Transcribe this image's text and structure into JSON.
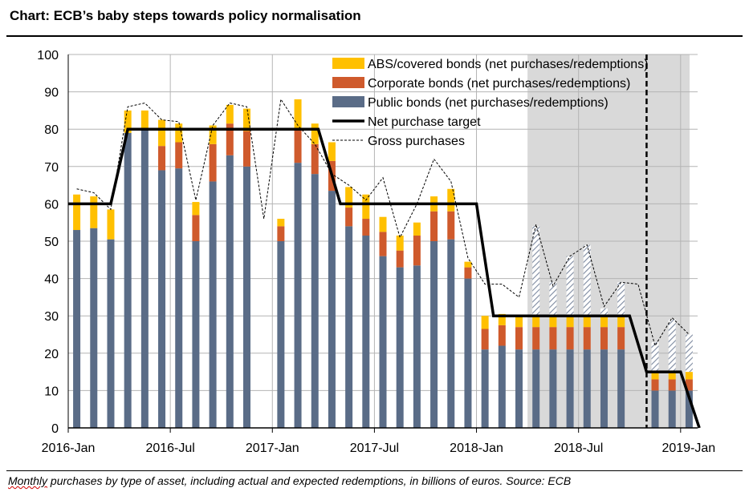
{
  "header": {
    "title": "Chart: ECB’s baby steps towards policy normalisation"
  },
  "caption": {
    "squiggle_word": "Monthly",
    "rest": " purchases by type of asset, including actual and expected redemptions, in billions of euros. Source: ECB"
  },
  "colors": {
    "public": "#5a6c87",
    "corporate": "#cf5a2c",
    "abs": "#ffc000",
    "shade": "#d9d9d9",
    "grid": "#b4b4b4",
    "target": "#000000"
  },
  "chart_data": {
    "type": "bar",
    "stacked": true,
    "title": "Chart: ECB’s baby steps towards policy normalisation",
    "xlabel": "",
    "ylabel": "",
    "ylim": [
      0,
      100
    ],
    "yticks": [
      0,
      10,
      20,
      30,
      40,
      50,
      60,
      70,
      80,
      90,
      100
    ],
    "xtick_labels": [
      {
        "index": 0,
        "label": "2016-Jan"
      },
      {
        "index": 6,
        "label": "2016-Jul"
      },
      {
        "index": 12,
        "label": "2017-Jan"
      },
      {
        "index": 18,
        "label": "2017-Jul"
      },
      {
        "index": 24,
        "label": "2018-Jan"
      },
      {
        "index": 30,
        "label": "2018-Jul"
      },
      {
        "index": 36,
        "label": "2019-Jan"
      }
    ],
    "months": 37,
    "shaded_from_index": 26.5,
    "dashed_vline_index": 33.5,
    "expected_from_index": 27,
    "legend": [
      {
        "key": "abs",
        "label": "ABS/covered bonds (net purchases/redemptions)"
      },
      {
        "key": "corporate",
        "label": "Corporate bonds (net purchases/redemptions)"
      },
      {
        "key": "public",
        "label": "Public bonds (net purchases/redemptions)"
      },
      {
        "key": "target",
        "label": "Net purchase target"
      },
      {
        "key": "gross",
        "label": "Gross purchases"
      }
    ],
    "series": [
      {
        "name": "Public bonds (net purchases/redemptions)",
        "key": "public",
        "values": [
          53,
          53.5,
          50.5,
          79,
          80,
          69,
          69.5,
          50,
          66,
          73,
          70,
          null,
          50,
          71,
          68,
          63.5,
          54,
          51.5,
          46,
          43,
          43.5,
          50,
          50.5,
          40,
          21,
          22,
          21,
          21,
          21,
          21,
          21,
          21,
          21,
          null,
          10,
          10,
          10,
          null
        ]
      },
      {
        "name": "Corporate bonds (net purchases/redemptions)",
        "key": "corporate",
        "values": [
          0,
          0,
          0,
          0,
          0,
          6.5,
          7,
          7,
          10,
          8.5,
          9.5,
          null,
          4,
          9,
          8,
          8,
          5,
          4.5,
          6.5,
          4.5,
          8,
          8,
          7.5,
          3,
          5.5,
          5.5,
          6,
          6,
          6,
          6,
          6,
          6,
          6,
          null,
          3,
          3,
          3,
          null
        ]
      },
      {
        "name": "ABS/covered bonds (net purchases/redemptions)",
        "key": "abs",
        "values": [
          9.5,
          8.5,
          8,
          6,
          5,
          7,
          5,
          3.5,
          5,
          5,
          6,
          null,
          2,
          8,
          5.5,
          5,
          5.5,
          6.5,
          4,
          4,
          3.5,
          4,
          6,
          1.5,
          3.5,
          3,
          3,
          3,
          3,
          3,
          3,
          3,
          3,
          null,
          2,
          2,
          2,
          null
        ]
      },
      {
        "name": "Expected redemptions (hatched)",
        "key": "hatch",
        "values": [
          0,
          0,
          0,
          0,
          0,
          0,
          0,
          0,
          0,
          0,
          0,
          0,
          0,
          0,
          0,
          0,
          0,
          0,
          0,
          0,
          0,
          0,
          0,
          0,
          0,
          0,
          0,
          24,
          9,
          16,
          19,
          2,
          9,
          null,
          8,
          14,
          10,
          null
        ]
      },
      {
        "name": "Net purchase target",
        "key": "target",
        "step_points": [
          [
            -0.5,
            60
          ],
          [
            2,
            60
          ],
          [
            3,
            80
          ],
          [
            14.2,
            80
          ],
          [
            15.5,
            60
          ],
          [
            23.5,
            60
          ],
          [
            24.5,
            30
          ],
          [
            32.5,
            30
          ],
          [
            33.5,
            15
          ],
          [
            35.5,
            15
          ],
          [
            36.6,
            0
          ]
        ]
      },
      {
        "name": "Gross purchases",
        "key": "gross",
        "values": [
          64,
          63,
          58.5,
          86,
          87,
          82.5,
          82,
          61,
          81,
          87,
          86,
          56,
          88,
          81,
          76,
          68,
          65,
          61,
          67,
          51,
          60,
          72,
          66,
          45.5,
          38.5,
          38.5,
          35,
          54.5,
          38,
          46,
          49,
          32.5,
          39,
          38.5,
          22,
          29.5,
          25,
          null
        ]
      }
    ]
  }
}
